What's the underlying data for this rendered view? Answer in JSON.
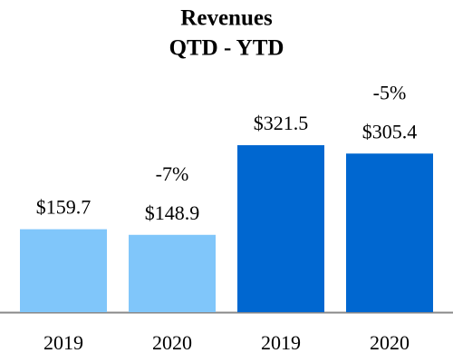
{
  "chart_data": {
    "type": "bar",
    "title": "Revenues",
    "subtitle": "QTD - YTD",
    "categories": [
      "2019",
      "2020",
      "2019",
      "2020"
    ],
    "values": [
      159.7,
      148.9,
      321.5,
      305.4
    ],
    "value_labels": [
      "$159.7",
      "$148.9",
      "$321.5",
      "$305.4"
    ],
    "colors": [
      "#80c6fa",
      "#80c6fa",
      "#0067d0",
      "#0067d0"
    ],
    "annotations": [
      "-7%",
      "-5%"
    ]
  }
}
